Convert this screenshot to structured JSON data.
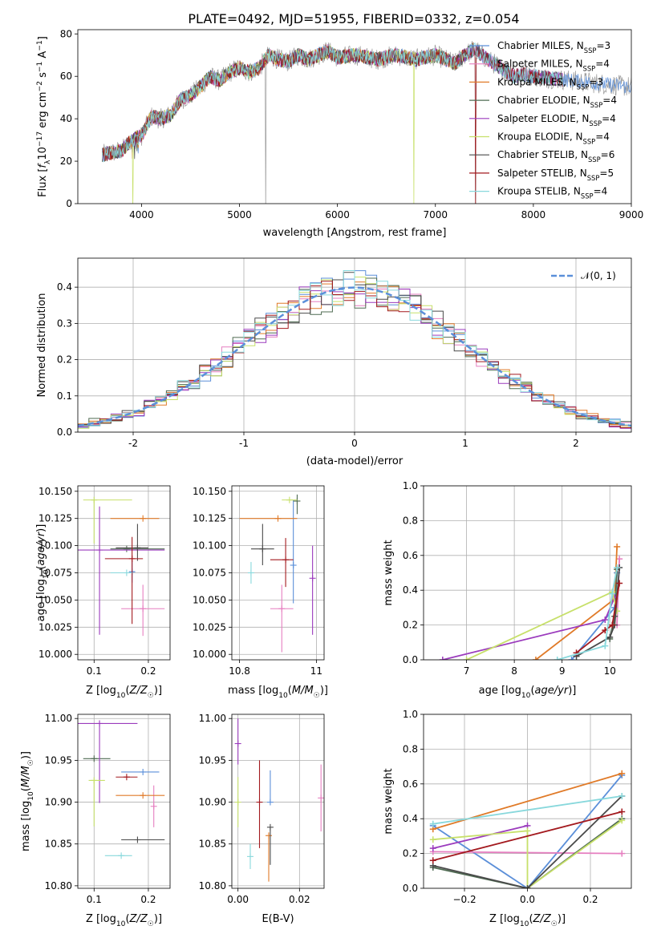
{
  "figure_title": "PLATE=0492, MJD=51955, FIBERID=0332, z=0.054",
  "colors": {
    "Chabrier MILES": "#5b8fd9",
    "Salpeter MILES": "#e67fc0",
    "Kroupa MILES": "#e07a28",
    "Chabrier ELODIE": "#4f6b52",
    "Salpeter ELODIE": "#9b3bbd",
    "Kroupa ELODIE": "#c7e06a",
    "Chabrier STELIB": "#4a4a4a",
    "Salpeter STELIB": "#a3191e",
    "Kroupa STELIB": "#88d8dc",
    "normal": "#5b8fd9"
  },
  "chart_data": [
    {
      "id": "spectrum",
      "type": "line",
      "title": "PLATE=0492, MJD=51955, FIBERID=0332, z=0.054",
      "xlabel": "wavelength [Angstrom, rest frame]",
      "ylabel": "Flux [fλ10−17 erg cm−2 s−1 A−1]",
      "xlim": [
        3350,
        9000
      ],
      "ylim": [
        0,
        82
      ],
      "xticks": [
        4000,
        5000,
        6000,
        7000,
        8000,
        9000
      ],
      "yticks": [
        0,
        20,
        40,
        60,
        80
      ],
      "grid": false,
      "legend_position": "top-right",
      "series": [
        {
          "name": "Chabrier MILES, N_SSP=3"
        },
        {
          "name": "Salpeter MILES, N_SSP=4"
        },
        {
          "name": "Kroupa MILES, N_SSP=3"
        },
        {
          "name": "Chabrier ELODIE, N_SSP=4"
        },
        {
          "name": "Salpeter ELODIE, N_SSP=4"
        },
        {
          "name": "Kroupa ELODIE, N_SSP=4"
        },
        {
          "name": "Chabrier STELIB, N_SSP=6"
        },
        {
          "name": "Salpeter STELIB, N_SSP=5"
        },
        {
          "name": "Kroupa STELIB, N_SSP=4"
        }
      ],
      "continuum": {
        "x": [
          3600,
          3700,
          3800,
          3900,
          4000,
          4100,
          4200,
          4300,
          4400,
          4500,
          4600,
          4700,
          4800,
          4900,
          5000,
          5100,
          5200,
          5300,
          5400,
          5500,
          5600,
          5700,
          5800,
          5900,
          6000,
          6200,
          6400,
          6600,
          6800,
          7000,
          7200,
          7300,
          7400,
          7500,
          7600,
          7700,
          7800,
          7900,
          8000,
          8200,
          8400,
          8600,
          8800,
          9000
        ],
        "y": [
          23,
          24,
          25,
          30,
          32,
          41,
          40,
          42,
          49,
          51,
          55,
          60,
          58,
          62,
          64,
          62,
          64,
          70,
          68,
          67,
          70,
          68,
          70,
          72,
          69,
          70,
          68,
          70,
          68,
          70,
          66,
          70,
          73,
          69,
          66,
          63,
          60,
          61,
          60,
          59,
          58,
          57,
          56,
          55
        ]
      },
      "series_x_end": [
        9000,
        8300,
        7400,
        8300,
        8300,
        7300,
        8300,
        8300,
        8300
      ]
    },
    {
      "id": "residuals",
      "type": "histogram",
      "xlabel": "(data-model)/error",
      "ylabel": "Normed distribution",
      "xlim": [
        -2.5,
        2.5
      ],
      "ylim": [
        0,
        0.48
      ],
      "xticks": [
        -2,
        -1,
        0,
        1,
        2
      ],
      "yticks": [
        0.0,
        0.1,
        0.2,
        0.3,
        0.4
      ],
      "grid": true,
      "legend_position": "top-right",
      "legend": [
        "𝒩(0, 1)"
      ],
      "bin_width": 0.1
    },
    {
      "id": "age-Z",
      "type": "scatter",
      "xlabel": "Z [log10(Z/Z☉)]",
      "ylabel": "age [log10(age/yr)]",
      "xlim": [
        0.07,
        0.24
      ],
      "ylim": [
        9.995,
        10.155
      ],
      "xticks": [
        0.1,
        0.2
      ],
      "yticks": [
        10.0,
        10.025,
        10.05,
        10.075,
        10.1,
        10.125,
        10.15
      ],
      "ytick_labels": [
        "10.000",
        "10.025",
        "10.050",
        "10.075",
        "10.100",
        "10.125",
        "10.150"
      ],
      "grid": true,
      "points": [
        {
          "series": "Chabrier MILES",
          "x": 0.17,
          "y": 10.076,
          "xerr": [
            0.005,
            0.005
          ],
          "yerr": [
            0.01,
            0.01
          ]
        },
        {
          "series": "Salpeter MILES",
          "x": 0.19,
          "y": 10.042,
          "xerr": [
            0.04,
            0.04
          ],
          "yerr": [
            0.025,
            0.022
          ]
        },
        {
          "series": "Kroupa MILES",
          "x": 0.19,
          "y": 10.125,
          "xerr": [
            0.06,
            0.03
          ],
          "yerr": [
            0.0,
            0.0
          ]
        },
        {
          "series": "Chabrier ELODIE",
          "x": 0.16,
          "y": 10.097,
          "xerr": [
            0.03,
            0.07
          ],
          "yerr": [
            0.0,
            0.0
          ]
        },
        {
          "series": "Salpeter ELODIE",
          "x": 0.11,
          "y": 10.096,
          "xerr": [
            0.04,
            0.12
          ],
          "yerr": [
            0.078,
            0.04
          ]
        },
        {
          "series": "Kroupa ELODIE",
          "x": 0.1,
          "y": 10.142,
          "xerr": [
            0.02,
            0.07
          ],
          "yerr": [
            0.04,
            0.0
          ]
        },
        {
          "series": "Chabrier STELIB",
          "x": 0.18,
          "y": 10.098,
          "xerr": [
            0.04,
            0.02
          ],
          "yerr": [
            0.012,
            0.022
          ]
        },
        {
          "series": "Salpeter STELIB",
          "x": 0.17,
          "y": 10.088,
          "xerr": [
            0.05,
            0.02
          ],
          "yerr": [
            0.06,
            0.02
          ]
        },
        {
          "series": "Kroupa STELIB",
          "x": 0.16,
          "y": 10.075,
          "xerr": [
            0.03,
            0.01
          ],
          "yerr": [
            0.0,
            0.0
          ]
        }
      ]
    },
    {
      "id": "age-mass",
      "type": "scatter",
      "xlabel": "mass [log10(M/M☉)]",
      "ylabel": "",
      "xlim": [
        10.78,
        11.02
      ],
      "ylim": [
        9.995,
        10.155
      ],
      "xticks": [
        10.8,
        11.0
      ],
      "yticks": [
        10.0,
        10.025,
        10.05,
        10.075,
        10.1,
        10.125,
        10.15
      ],
      "ytick_labels": [
        "10.000",
        "10.025",
        "10.050",
        "10.075",
        "10.100",
        "10.125",
        "10.150"
      ],
      "grid": true,
      "points": [
        {
          "series": "Chabrier MILES",
          "x": 10.94,
          "y": 10.082,
          "xerr": [
            0.0,
            0.0
          ],
          "yerr": [
            0.035,
            0.06
          ]
        },
        {
          "series": "Salpeter MILES",
          "x": 10.91,
          "y": 10.042,
          "xerr": [
            0.03,
            0.03
          ],
          "yerr": [
            0.04,
            0.022
          ]
        },
        {
          "series": "Kroupa MILES",
          "x": 10.9,
          "y": 10.125,
          "xerr": [
            0.1,
            0.05
          ],
          "yerr": [
            0.0,
            0.0
          ]
        },
        {
          "series": "Chabrier ELODIE",
          "x": 10.95,
          "y": 10.141,
          "xerr": [
            0.01,
            0.0
          ],
          "yerr": [
            0.012,
            0.006
          ]
        },
        {
          "series": "Salpeter ELODIE",
          "x": 10.99,
          "y": 10.07,
          "xerr": [
            0.0,
            0.0
          ],
          "yerr": [
            0.052,
            0.03
          ]
        },
        {
          "series": "Kroupa ELODIE",
          "x": 10.93,
          "y": 10.142,
          "xerr": [
            0.02,
            0.02
          ],
          "yerr": [
            0.0,
            0.0
          ]
        },
        {
          "series": "Chabrier STELIB",
          "x": 10.86,
          "y": 10.097,
          "xerr": [
            0.03,
            0.03
          ],
          "yerr": [
            0.015,
            0.023
          ]
        },
        {
          "series": "Salpeter STELIB",
          "x": 10.92,
          "y": 10.087,
          "xerr": [
            0.04,
            0.02
          ],
          "yerr": [
            0.025,
            0.02
          ]
        },
        {
          "series": "Kroupa STELIB",
          "x": 10.83,
          "y": 10.075,
          "xerr": [
            0.0,
            0.0
          ],
          "yerr": [
            0.01,
            0.01
          ]
        }
      ]
    },
    {
      "id": "weight-age",
      "type": "line",
      "xlabel": "age [log10(age/yr)]",
      "ylabel": "mass weight",
      "xlim": [
        6.1,
        10.45
      ],
      "ylim": [
        0,
        1
      ],
      "xticks": [
        7,
        8,
        9,
        10
      ],
      "yticks": [
        0.0,
        0.2,
        0.4,
        0.6,
        0.8,
        1.0
      ],
      "grid": true,
      "series": [
        {
          "color": "Chabrier MILES",
          "x": [
            9.2,
            10.1,
            10.15
          ],
          "y": [
            0.0,
            0.3,
            0.5
          ]
        },
        {
          "color": "Salpeter MILES",
          "x": [
            10.15,
            10.2
          ],
          "y": [
            0.2,
            0.58
          ]
        },
        {
          "color": "Kroupa MILES",
          "x": [
            8.45,
            10.1,
            10.15
          ],
          "y": [
            0.0,
            0.35,
            0.65
          ]
        },
        {
          "color": "Chabrier ELODIE",
          "x": [
            10.0,
            10.1,
            10.15
          ],
          "y": [
            0.12,
            0.25,
            0.52
          ]
        },
        {
          "color": "Salpeter ELODIE",
          "x": [
            6.5,
            9.9,
            10.1
          ],
          "y": [
            0.0,
            0.23,
            0.36
          ]
        },
        {
          "color": "Kroupa ELODIE",
          "x": [
            7.0,
            10.05,
            10.15
          ],
          "y": [
            0.0,
            0.39,
            0.28
          ]
        },
        {
          "color": "Chabrier STELIB",
          "x": [
            9.3,
            10.0,
            10.1,
            10.2
          ],
          "y": [
            0.02,
            0.13,
            0.2,
            0.53
          ]
        },
        {
          "color": "Salpeter STELIB",
          "x": [
            9.3,
            9.9,
            10.05,
            10.2
          ],
          "y": [
            0.04,
            0.17,
            0.2,
            0.44
          ]
        },
        {
          "color": "Kroupa STELIB",
          "x": [
            8.9,
            9.9,
            10.05,
            10.15
          ],
          "y": [
            0.0,
            0.08,
            0.38,
            0.53
          ]
        }
      ]
    },
    {
      "id": "mass-Z",
      "type": "scatter",
      "xlabel": "Z [log10(Z/Z☉)]",
      "ylabel": "mass [log10(M/M☉)]",
      "xlim": [
        0.07,
        0.24
      ],
      "ylim": [
        10.797,
        11.005
      ],
      "xticks": [
        0.1,
        0.2
      ],
      "yticks": [
        10.8,
        10.85,
        10.9,
        10.95,
        11.0
      ],
      "ytick_labels": [
        "10.80",
        "10.85",
        "10.90",
        "10.95",
        "11.00"
      ],
      "grid": true,
      "points": [
        {
          "series": "Chabrier MILES",
          "x": 0.19,
          "y": 10.936,
          "xerr": [
            0.04,
            0.03
          ],
          "yerr": [
            0.0,
            0.0
          ]
        },
        {
          "series": "Salpeter MILES",
          "x": 0.21,
          "y": 10.895,
          "xerr": [
            0.0,
            0.0
          ],
          "yerr": [
            0.025,
            0.025
          ]
        },
        {
          "series": "Kroupa MILES",
          "x": 0.19,
          "y": 10.908,
          "xerr": [
            0.05,
            0.04
          ],
          "yerr": [
            0.0,
            0.0
          ]
        },
        {
          "series": "Chabrier ELODIE",
          "x": 0.1,
          "y": 10.952,
          "xerr": [
            0.02,
            0.03
          ],
          "yerr": [
            0.0,
            0.0
          ]
        },
        {
          "series": "Salpeter ELODIE",
          "x": 0.11,
          "y": 10.994,
          "xerr": [
            0.04,
            0.07
          ],
          "yerr": [
            0.095,
            0.0
          ]
        },
        {
          "series": "Kroupa ELODIE",
          "x": 0.1,
          "y": 10.926,
          "xerr": [
            0.01,
            0.02
          ],
          "yerr": [
            0.055,
            0.0
          ]
        },
        {
          "series": "Chabrier STELIB",
          "x": 0.18,
          "y": 10.855,
          "xerr": [
            0.03,
            0.05
          ],
          "yerr": [
            0.0,
            0.0
          ]
        },
        {
          "series": "Salpeter STELIB",
          "x": 0.16,
          "y": 10.93,
          "xerr": [
            0.02,
            0.02
          ],
          "yerr": [
            0.0,
            0.0
          ]
        },
        {
          "series": "Kroupa STELIB",
          "x": 0.15,
          "y": 10.836,
          "xerr": [
            0.03,
            0.02
          ],
          "yerr": [
            0.0,
            0.0
          ]
        }
      ]
    },
    {
      "id": "mass-ebv",
      "type": "scatter",
      "xlabel": "E(B-V)",
      "ylabel": "",
      "xlim": [
        -0.002,
        0.028
      ],
      "ylim": [
        10.797,
        11.005
      ],
      "xticks": [
        0.0,
        0.02
      ],
      "xtick_labels": [
        "0.00",
        "0.02"
      ],
      "yticks": [
        10.8,
        10.85,
        10.9,
        10.95,
        11.0
      ],
      "ytick_labels": [
        "10.80",
        "10.85",
        "10.90",
        "10.95",
        "11.00"
      ],
      "grid": true,
      "points": [
        {
          "series": "Chabrier MILES",
          "x": 0.0105,
          "y": 10.9,
          "xerr": [
            0.0,
            0.0
          ],
          "yerr": [
            0.0,
            0.038
          ]
        },
        {
          "series": "Salpeter MILES",
          "x": 0.027,
          "y": 10.905,
          "xerr": [
            0.0,
            0.0
          ],
          "yerr": [
            0.04,
            0.04
          ]
        },
        {
          "series": "Kroupa MILES",
          "x": 0.01,
          "y": 10.86,
          "xerr": [
            0.0,
            0.0
          ],
          "yerr": [
            0.055,
            0.0
          ]
        },
        {
          "series": "Salpeter ELODIE",
          "x": 0.0,
          "y": 10.97,
          "xerr": [
            0.0,
            0.0
          ],
          "yerr": [
            0.025,
            0.03
          ]
        },
        {
          "series": "Kroupa ELODIE",
          "x": 0.0,
          "y": 10.9,
          "xerr": [
            0.0,
            0.0
          ],
          "yerr": [
            0.03,
            0.03
          ]
        },
        {
          "series": "Chabrier STELIB",
          "x": 0.0105,
          "y": 10.87,
          "xerr": [
            0.0,
            0.0
          ],
          "yerr": [
            0.045,
            0.0
          ]
        },
        {
          "series": "Salpeter STELIB",
          "x": 0.007,
          "y": 10.9,
          "xerr": [
            0.0,
            0.0
          ],
          "yerr": [
            0.055,
            0.05
          ]
        },
        {
          "series": "Kroupa STELIB",
          "x": 0.004,
          "y": 10.835,
          "xerr": [
            0.0,
            0.0
          ],
          "yerr": [
            0.015,
            0.015
          ]
        }
      ]
    },
    {
      "id": "weight-Z",
      "type": "line",
      "xlabel": "Z [log10(Z/Z☉)]",
      "ylabel": "mass weight",
      "xlim": [
        -0.33,
        0.33
      ],
      "ylim": [
        0,
        1
      ],
      "xticks": [
        -0.2,
        0.0,
        0.2
      ],
      "xtick_labels": [
        "−0.2",
        "0.0",
        "0.2"
      ],
      "yticks": [
        0.0,
        0.2,
        0.4,
        0.6,
        0.8,
        1.0
      ],
      "grid": true,
      "series": [
        {
          "color": "Chabrier MILES",
          "x": [
            -0.3,
            0.0,
            0.3
          ],
          "y": [
            0.36,
            0.0,
            0.65
          ]
        },
        {
          "color": "Salpeter MILES",
          "x": [
            -0.3,
            0.3
          ],
          "y": [
            0.21,
            0.2
          ]
        },
        {
          "color": "Kroupa MILES",
          "x": [
            -0.3,
            0.3
          ],
          "y": [
            0.34,
            0.66
          ]
        },
        {
          "color": "Chabrier ELODIE",
          "x": [
            -0.3,
            0.0,
            0.3
          ],
          "y": [
            0.12,
            0.0,
            0.4
          ]
        },
        {
          "color": "Salpeter ELODIE",
          "x": [
            -0.3,
            0.0
          ],
          "y": [
            0.23,
            0.36
          ]
        },
        {
          "color": "Kroupa ELODIE",
          "x": [
            -0.3,
            0.0,
            0.0,
            0.3
          ],
          "y": [
            0.28,
            0.33,
            0.0,
            0.39
          ]
        },
        {
          "color": "Chabrier STELIB",
          "x": [
            -0.3,
            0.0,
            0.3
          ],
          "y": [
            0.13,
            0.0,
            0.53
          ]
        },
        {
          "color": "Salpeter STELIB",
          "x": [
            -0.3,
            0.3
          ],
          "y": [
            0.16,
            0.44
          ]
        },
        {
          "color": "Kroupa STELIB",
          "x": [
            -0.3,
            0.3
          ],
          "y": [
            0.37,
            0.53
          ]
        }
      ]
    }
  ]
}
